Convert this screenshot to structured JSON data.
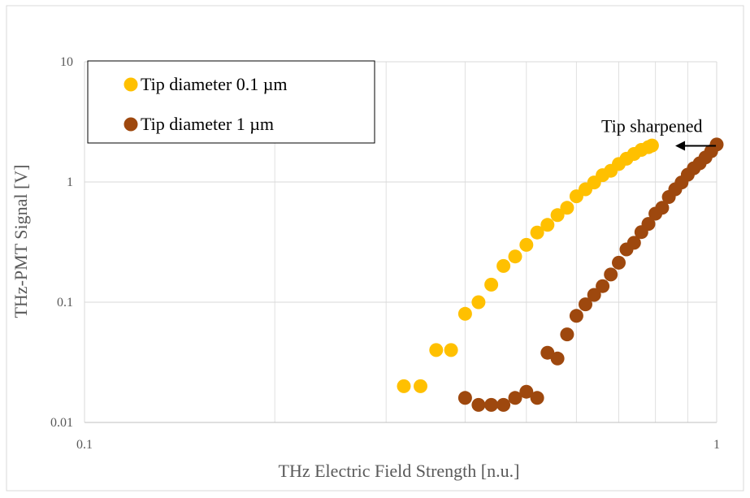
{
  "chart_data": {
    "type": "scatter",
    "title": "",
    "xlabel": "THz Electric Field Strength [n.u.]",
    "ylabel": "THz-PMT Signal  [V]",
    "x_scale": "log",
    "y_scale": "log",
    "xlim": [
      0.1,
      1
    ],
    "ylim": [
      0.01,
      10
    ],
    "x_ticks": [
      {
        "value": 0.1,
        "label": "0.1"
      },
      {
        "value": 1,
        "label": "1"
      }
    ],
    "y_ticks": [
      {
        "value": 0.01,
        "label": "0.01"
      },
      {
        "value": 0.1,
        "label": "0.1"
      },
      {
        "value": 1,
        "label": "1"
      },
      {
        "value": 10,
        "label": "10"
      }
    ],
    "grid": true,
    "legend_position": "top-left",
    "annotation": {
      "text": "Tip sharpened",
      "target_x": 0.83,
      "target_y": 2.0
    },
    "series": [
      {
        "name": "Tip diameter 0.1 µm",
        "color": "#FFC000",
        "points": [
          [
            0.32,
            0.02
          ],
          [
            0.34,
            0.02
          ],
          [
            0.36,
            0.04
          ],
          [
            0.38,
            0.04
          ],
          [
            0.4,
            0.08
          ],
          [
            0.42,
            0.1
          ],
          [
            0.44,
            0.14
          ],
          [
            0.46,
            0.2
          ],
          [
            0.48,
            0.24
          ],
          [
            0.5,
            0.3
          ],
          [
            0.52,
            0.38
          ],
          [
            0.54,
            0.44
          ],
          [
            0.56,
            0.53
          ],
          [
            0.58,
            0.61
          ],
          [
            0.6,
            0.76
          ],
          [
            0.62,
            0.87
          ],
          [
            0.64,
            0.99
          ],
          [
            0.66,
            1.14
          ],
          [
            0.68,
            1.24
          ],
          [
            0.7,
            1.41
          ],
          [
            0.72,
            1.56
          ],
          [
            0.74,
            1.71
          ],
          [
            0.76,
            1.85
          ],
          [
            0.78,
            1.95
          ],
          [
            0.79,
            2.01
          ]
        ]
      },
      {
        "name": "Tip diameter 1 µm",
        "color": "#9E480E",
        "points": [
          [
            0.4,
            0.016
          ],
          [
            0.42,
            0.014
          ],
          [
            0.44,
            0.014
          ],
          [
            0.46,
            0.014
          ],
          [
            0.48,
            0.016
          ],
          [
            0.5,
            0.018
          ],
          [
            0.52,
            0.016
          ],
          [
            0.54,
            0.038
          ],
          [
            0.56,
            0.034
          ],
          [
            0.58,
            0.054
          ],
          [
            0.6,
            0.077
          ],
          [
            0.62,
            0.096
          ],
          [
            0.64,
            0.115
          ],
          [
            0.66,
            0.136
          ],
          [
            0.68,
            0.17
          ],
          [
            0.7,
            0.213
          ],
          [
            0.72,
            0.275
          ],
          [
            0.74,
            0.312
          ],
          [
            0.76,
            0.383
          ],
          [
            0.78,
            0.448
          ],
          [
            0.8,
            0.545
          ],
          [
            0.82,
            0.61
          ],
          [
            0.84,
            0.75
          ],
          [
            0.86,
            0.87
          ],
          [
            0.88,
            0.99
          ],
          [
            0.9,
            1.15
          ],
          [
            0.92,
            1.3
          ],
          [
            0.94,
            1.43
          ],
          [
            0.96,
            1.6
          ],
          [
            0.98,
            1.8
          ],
          [
            1.0,
            2.05
          ]
        ]
      }
    ]
  }
}
